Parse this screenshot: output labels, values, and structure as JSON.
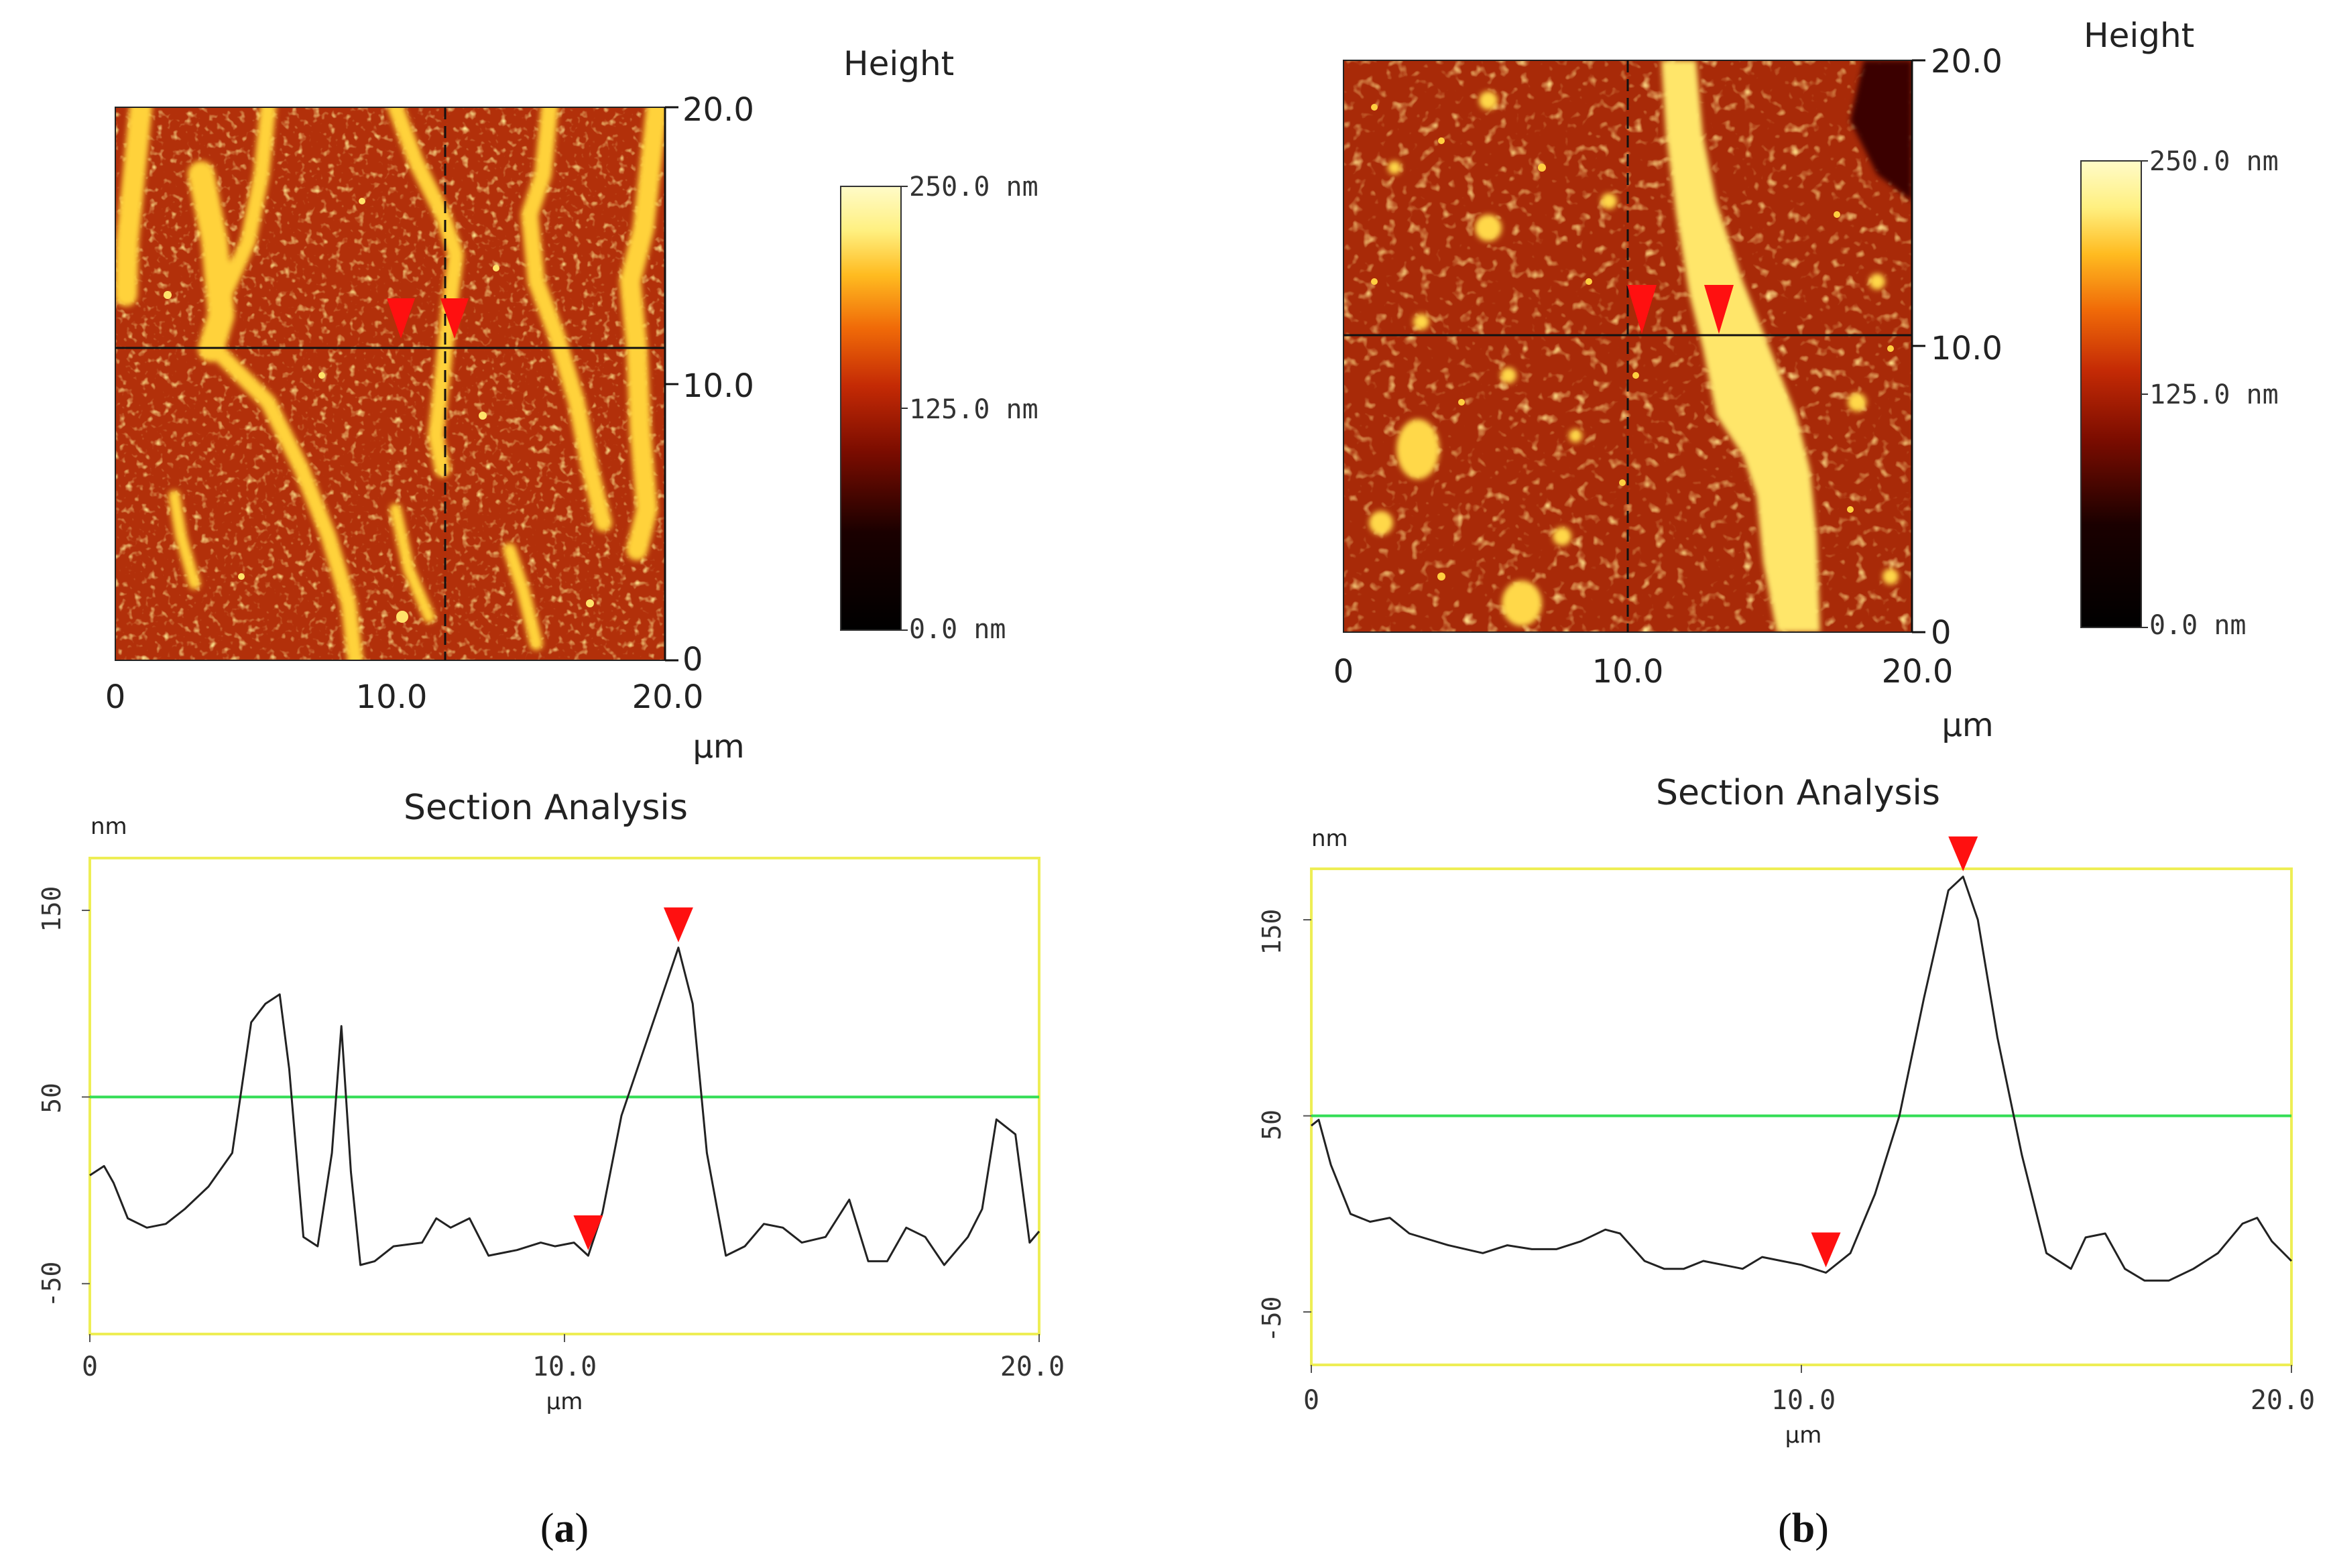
{
  "colors": {
    "afm_dark": "#2a0000",
    "afm_mid": "#c23a08",
    "afm_high": "#ff8c10",
    "afm_top": "#ffe36a",
    "marker": "#ff1010",
    "threshold": "#33dd55",
    "frame": "#eeee55"
  },
  "panels": [
    {
      "letter": "a",
      "caption_open": "(",
      "caption_close": ")",
      "image": {
        "height_title": "Height",
        "unit": "µm",
        "x_ticks": [
          "0",
          "10.0",
          "20.0"
        ],
        "y_ticks": [
          "0",
          "10.0",
          "20.0"
        ],
        "colorbar": [
          "250.0 nm",
          "125.0 nm",
          "0.0 nm"
        ],
        "cursor_x_um": 12.0,
        "cursor_y_um": 11.3,
        "marker_x_um": [
          10.5,
          12.4
        ]
      },
      "section": {
        "title": "Section Analysis",
        "y_unit": "nm",
        "x_unit": "µm",
        "y_ticks": [
          "150",
          "50",
          "-50"
        ],
        "x_ticks": [
          "0",
          "10.0",
          "20.0"
        ]
      }
    },
    {
      "letter": "b",
      "caption_open": "(",
      "caption_close": ")",
      "image": {
        "height_title": "Height",
        "unit": "µm",
        "x_ticks": [
          "0",
          "10.0",
          "20.0"
        ],
        "y_ticks": [
          "0",
          "10.0",
          "20.0"
        ],
        "colorbar": [
          "250.0 nm",
          "125.0 nm",
          "0.0 nm"
        ],
        "cursor_x_um": 10.0,
        "cursor_y_um": 10.4,
        "marker_x_um": [
          10.5,
          13.3
        ]
      },
      "section": {
        "title": "Section Analysis",
        "y_unit": "nm",
        "x_unit": "µm",
        "y_ticks": [
          "150",
          "50",
          "-50"
        ],
        "x_ticks": [
          "0",
          "10.0",
          "20.0"
        ]
      }
    }
  ],
  "chart_data": [
    {
      "type": "line",
      "title": "Section Analysis (a)",
      "xlabel": "µm",
      "ylabel": "nm",
      "xlim": [
        0,
        20
      ],
      "ylim": [
        -77,
        178
      ],
      "threshold": 50,
      "x": [
        0,
        0.3,
        0.5,
        0.8,
        1.2,
        1.6,
        2.0,
        2.5,
        3.0,
        3.4,
        3.7,
        4.0,
        4.2,
        4.5,
        4.8,
        5.1,
        5.3,
        5.5,
        5.7,
        6.0,
        6.4,
        7.0,
        7.3,
        7.6,
        8.0,
        8.4,
        9.0,
        9.5,
        9.8,
        10.2,
        10.5,
        10.8,
        11.2,
        11.6,
        12.0,
        12.4,
        12.7,
        13.0,
        13.4,
        13.8,
        14.2,
        14.6,
        15.0,
        15.5,
        16.0,
        16.4,
        16.8,
        17.2,
        17.6,
        18.0,
        18.5,
        18.8,
        19.1,
        19.5,
        19.8,
        20.0
      ],
      "series": [
        {
          "name": "profile",
          "values": [
            8,
            13,
            4,
            -15,
            -20,
            -18,
            -10,
            2,
            20,
            90,
            100,
            105,
            65,
            -25,
            -30,
            20,
            88,
            10,
            -40,
            -38,
            -30,
            -28,
            -15,
            -20,
            -15,
            -35,
            -32,
            -28,
            -30,
            -28,
            -35,
            -12,
            40,
            70,
            100,
            130,
            100,
            20,
            -35,
            -30,
            -18,
            -20,
            -28,
            -25,
            -5,
            -38,
            -38,
            -20,
            -25,
            -40,
            -25,
            -10,
            38,
            30,
            -28,
            -22
          ]
        }
      ],
      "markers_x": [
        10.5,
        12.4
      ]
    },
    {
      "type": "line",
      "title": "Section Analysis (b)",
      "xlabel": "µm",
      "ylabel": "nm",
      "xlim": [
        0,
        20
      ],
      "ylim": [
        -77,
        176
      ],
      "threshold": 50,
      "x": [
        0,
        0.15,
        0.4,
        0.8,
        1.2,
        1.6,
        2.0,
        2.8,
        3.5,
        4.0,
        4.5,
        5.0,
        5.5,
        6.0,
        6.3,
        6.8,
        7.2,
        7.6,
        8.0,
        8.4,
        8.8,
        9.2,
        9.6,
        10.0,
        10.5,
        11.0,
        11.5,
        12.0,
        12.5,
        13.0,
        13.3,
        13.6,
        14.0,
        14.5,
        15.0,
        15.5,
        15.8,
        16.2,
        16.6,
        17.0,
        17.5,
        18.0,
        18.5,
        19.0,
        19.3,
        19.6,
        20.0
      ],
      "series": [
        {
          "name": "profile",
          "values": [
            45,
            48,
            25,
            0,
            -4,
            -2,
            -10,
            -16,
            -20,
            -16,
            -18,
            -18,
            -14,
            -8,
            -10,
            -24,
            -28,
            -28,
            -24,
            -26,
            -28,
            -22,
            -24,
            -26,
            -30,
            -20,
            10,
            50,
            110,
            165,
            172,
            150,
            90,
            30,
            -20,
            -28,
            -12,
            -10,
            -28,
            -34,
            -34,
            -28,
            -20,
            -5,
            -2,
            -14,
            -24
          ]
        }
      ],
      "markers_x": [
        10.5,
        13.3
      ]
    }
  ]
}
